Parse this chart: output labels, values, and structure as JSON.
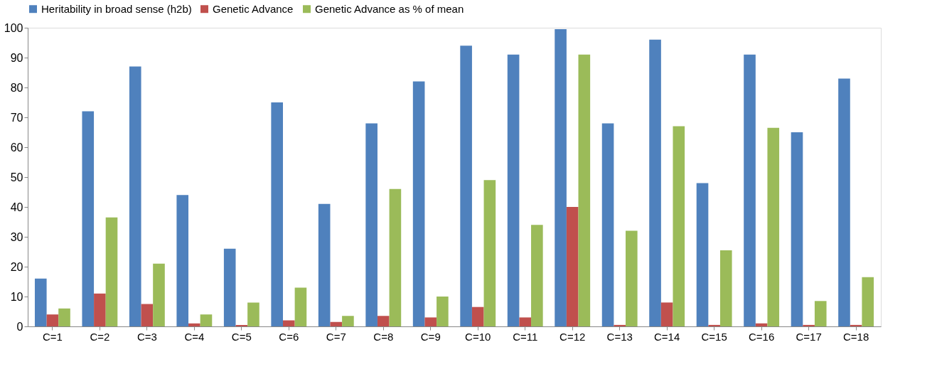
{
  "chart_data": {
    "type": "bar",
    "categories": [
      "C=1",
      "C=2",
      "C=3",
      "C=4",
      "C=5",
      "C=6",
      "C=7",
      "C=8",
      "C=9",
      "C=10",
      "C=11",
      "C=12",
      "C=13",
      "C=14",
      "C=15",
      "C=16",
      "C=17",
      "C=18"
    ],
    "series": [
      {
        "name": "Heritability in broad sense (h2b)",
        "color": "#4f81bd",
        "values": [
          16,
          72,
          87,
          44,
          26,
          75,
          41,
          68,
          82,
          94,
          91,
          99.5,
          68,
          96,
          48,
          91,
          65,
          83
        ]
      },
      {
        "name": "Genetic Advance",
        "color": "#c0504d",
        "values": [
          4,
          11,
          7.5,
          1,
          0.5,
          2,
          1.5,
          3.5,
          3,
          6.5,
          3,
          40,
          0.5,
          8,
          0.5,
          1,
          0.5,
          0.5
        ]
      },
      {
        "name": "Genetic Advance as % of mean",
        "color": "#9bbb59",
        "values": [
          6,
          36.5,
          21,
          4,
          8,
          13,
          3.5,
          46,
          10,
          49,
          34,
          91,
          32,
          67,
          25.5,
          66.5,
          8.5,
          16.5
        ]
      }
    ],
    "ylim": [
      0,
      100
    ],
    "yticks": [
      0,
      10,
      20,
      30,
      40,
      50,
      60,
      70,
      80,
      90,
      100
    ],
    "grid": false,
    "legend": "top"
  }
}
